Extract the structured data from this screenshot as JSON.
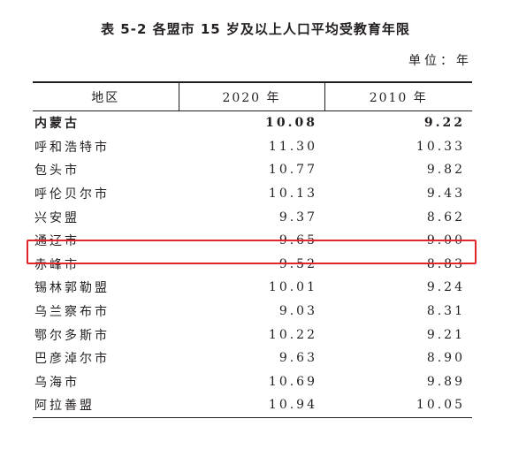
{
  "title": "表 5-2  各盟市 15 岁及以上人口平均受教育年限",
  "unit": "单位：年",
  "headers": [
    "地区",
    "2020 年",
    "2010 年"
  ],
  "rows": [
    {
      "region": "内蒙古",
      "y2020": "10.08",
      "y2010": "9.22",
      "bold": true
    },
    {
      "region": "呼和浩特市",
      "y2020": "11.30",
      "y2010": "10.33"
    },
    {
      "region": "包头市",
      "y2020": "10.77",
      "y2010": "9.82"
    },
    {
      "region": "呼伦贝尔市",
      "y2020": "10.13",
      "y2010": "9.43"
    },
    {
      "region": "兴安盟",
      "y2020": "9.37",
      "y2010": "8.62"
    },
    {
      "region": "通辽市",
      "y2020": "9.65",
      "y2010": "9.00",
      "highlighted": true
    },
    {
      "region": "赤峰市",
      "y2020": "9.52",
      "y2010": "8.83"
    },
    {
      "region": "锡林郭勒盟",
      "y2020": "10.01",
      "y2010": "9.24"
    },
    {
      "region": "乌兰察布市",
      "y2020": "9.03",
      "y2010": "8.31"
    },
    {
      "region": "鄂尔多斯市",
      "y2020": "10.22",
      "y2010": "9.21"
    },
    {
      "region": "巴彦淖尔市",
      "y2020": "9.63",
      "y2010": "8.90"
    },
    {
      "region": "乌海市",
      "y2020": "10.69",
      "y2010": "9.89"
    },
    {
      "region": "阿拉善盟",
      "y2020": "10.94",
      "y2010": "10.05"
    }
  ],
  "highlight_color": "#e0262b"
}
